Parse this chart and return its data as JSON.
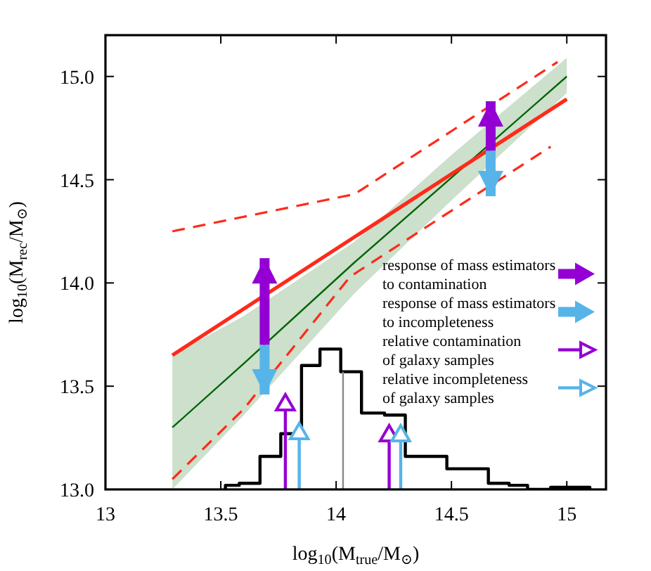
{
  "chart_data": {
    "type": "line",
    "xlabel": "log$_{10}$(M$_{true}$/M$_{⊙}$)",
    "ylabel": "log$_{10}$(M$_{rec}$/M$_{⊙}$)",
    "xlim": [
      13,
      15.17
    ],
    "ylim": [
      13,
      15.2
    ],
    "xticks": [
      13,
      13.5,
      14,
      14.5,
      15
    ],
    "yticks": [
      {
        "value": 13,
        "label": "13.0"
      },
      {
        "value": 13.5,
        "label": "13.5"
      },
      {
        "value": 14,
        "label": "14.0"
      },
      {
        "value": 14.5,
        "label": "14.5"
      },
      {
        "value": 15,
        "label": "15.0"
      }
    ],
    "legend": "right",
    "grid": false,
    "ref_lines": [
      {
        "axis": "x",
        "value": 14.03,
        "color": "#888888"
      }
    ],
    "series": [
      {
        "type": "histogram",
        "color": "#000000",
        "bins": [
          13.52,
          13.58,
          13.67,
          13.76,
          13.85,
          13.93,
          14.02,
          14.11,
          14.21,
          14.3,
          14.39,
          14.48,
          14.57,
          14.66,
          14.75,
          14.83,
          14.93,
          15.01,
          15.1
        ],
        "values": [
          13.02,
          13.03,
          13.16,
          13.27,
          13.6,
          13.68,
          13.57,
          13.37,
          13.36,
          13.16,
          13.16,
          13.1,
          13.1,
          13.03,
          13.02,
          13.0,
          13.01,
          13.01
        ]
      },
      {
        "color": "#006400",
        "x": [
          13.29,
          13.6,
          14.08,
          14.5,
          15
        ],
        "values": [
          13.3,
          13.61,
          14.1,
          14.51,
          15.0
        ],
        "lower": [
          13.0,
          13.36,
          13.95,
          14.4,
          14.92
        ],
        "upper": [
          13.65,
          13.84,
          14.2,
          14.62,
          15.09
        ]
      },
      {
        "color": "#ff2a1a",
        "x": [
          13.29,
          15
        ],
        "values": [
          13.65,
          14.89
        ]
      },
      {
        "color": "#ff2a1a",
        "line_style": "dashed",
        "x": [
          13.29,
          14.08,
          14.96
        ],
        "values": [
          14.25,
          14.43,
          15.07
        ]
      },
      {
        "color": "#ff2a1a",
        "line_style": "dashed",
        "x": [
          13.29,
          13.6,
          14.06,
          14.5,
          14.93
        ],
        "values": [
          13.05,
          13.39,
          14.03,
          14.35,
          14.66
        ]
      },
      {
        "type": "bar",
        "name": "response of mass estimators to contamination",
        "color": "#9400d3",
        "x": [
          13.69,
          14.67
        ],
        "base": [
          13.7,
          14.64
        ],
        "values": [
          0.42,
          0.24
        ]
      },
      {
        "type": "bar",
        "name": "response of mass estimators to incompleteness",
        "color": "#56b4e9",
        "x": [
          13.69,
          14.67
        ],
        "base": [
          13.7,
          14.64
        ],
        "values": [
          -0.24,
          -0.22
        ]
      },
      {
        "type": "lollipop",
        "name": "relative contamination of galaxy samples",
        "color": "#9400d3",
        "marker": "triangle",
        "x": [
          13.78,
          14.23
        ],
        "values": [
          13.41,
          13.26
        ]
      },
      {
        "type": "lollipop",
        "name": "relative incompleteness of galaxy samples",
        "color": "#56b4e9",
        "marker": "triangle",
        "x": [
          13.84,
          14.28
        ],
        "values": [
          13.27,
          13.26
        ]
      }
    ]
  }
}
